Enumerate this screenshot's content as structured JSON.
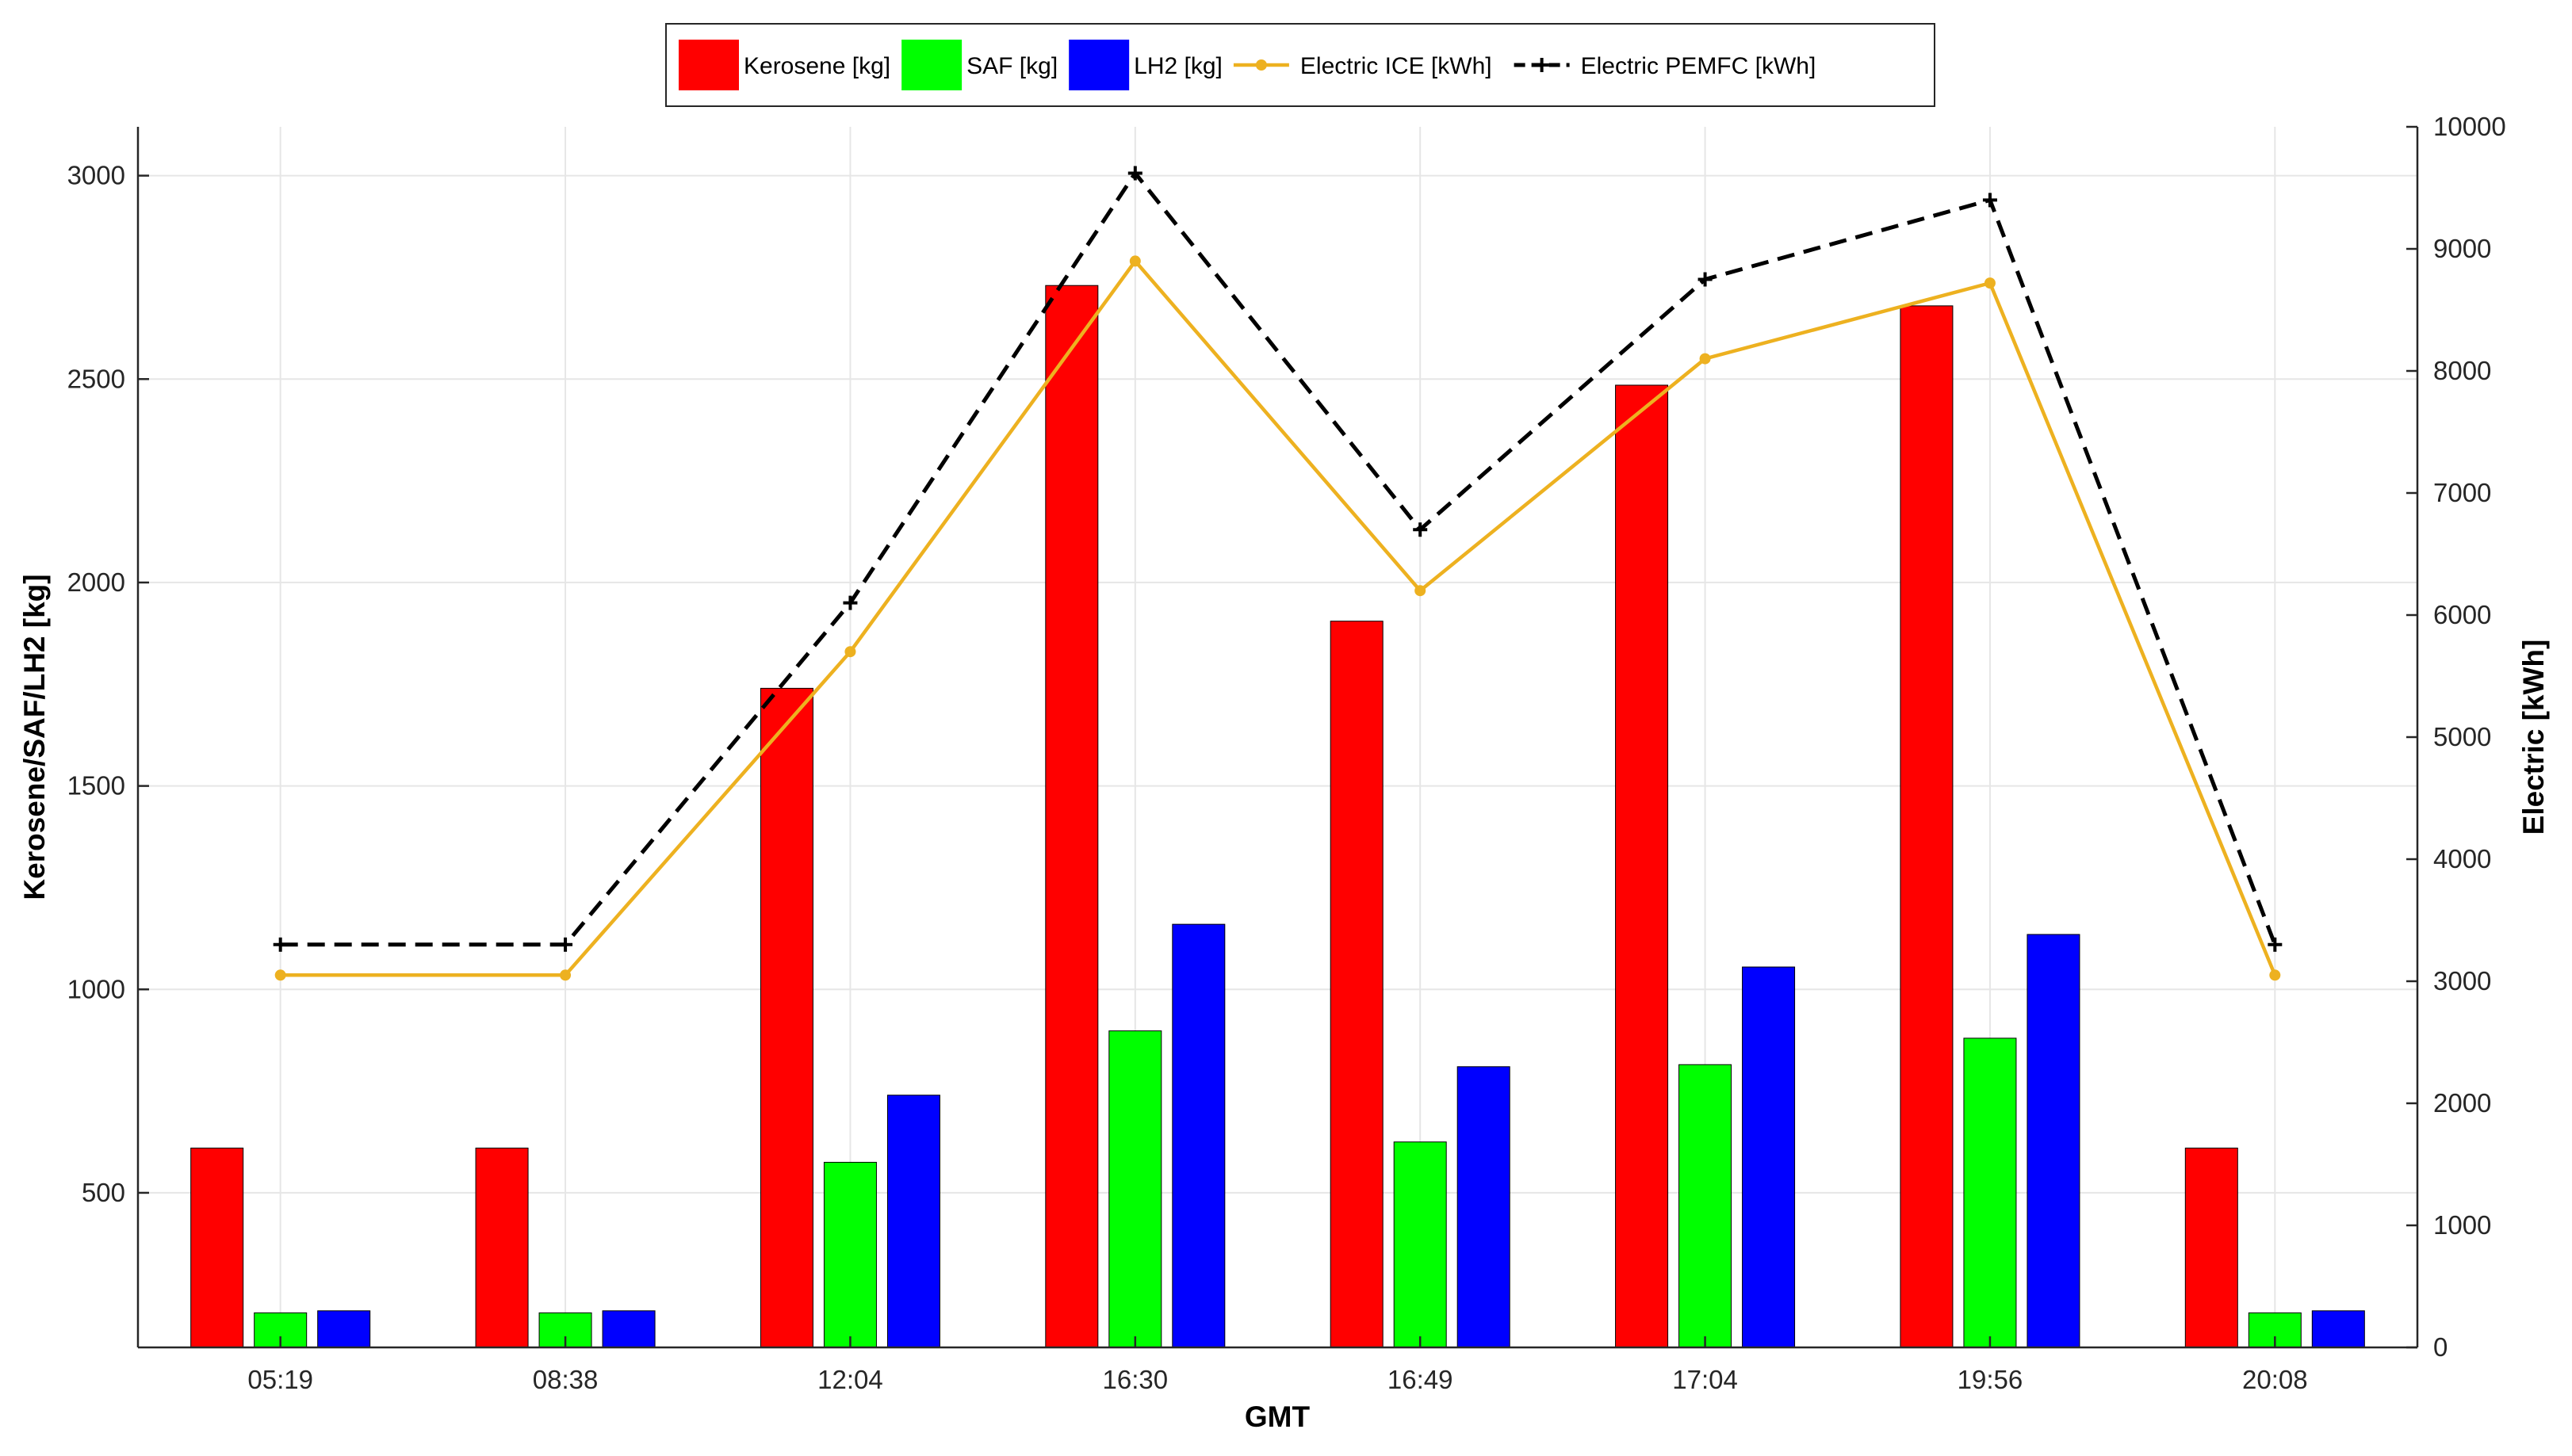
{
  "chart_data": {
    "type": "bar",
    "categories": [
      "05:19",
      "08:38",
      "12:04",
      "16:30",
      "16:49",
      "17:04",
      "19:56",
      "20:08"
    ],
    "xlabel": "GMT",
    "ylabel_left": "Kerosene/SAF/LH2 [kg]",
    "ylabel_right": "Electric [kWh]",
    "ylim_left": [
      120,
      3120
    ],
    "ylim_right": [
      0,
      10000
    ],
    "yticks_left": [
      500,
      1000,
      1500,
      2000,
      2500,
      3000
    ],
    "yticks_right": [
      0,
      1000,
      2000,
      3000,
      4000,
      5000,
      6000,
      7000,
      8000,
      9000,
      10000
    ],
    "grid": true,
    "legend_position": "top-center",
    "bar_series": [
      {
        "name": "Kerosene [kg]",
        "color": "#ff0000",
        "values": [
          610,
          610,
          1740,
          2730,
          1905,
          2485,
          2680,
          610
        ]
      },
      {
        "name": "SAF [kg]",
        "color": "#00ff00",
        "values": [
          205,
          205,
          575,
          898,
          625,
          815,
          880,
          205
        ]
      },
      {
        "name": "LH2 [kg]",
        "color": "#0000ff",
        "values": [
          210,
          210,
          740,
          1160,
          810,
          1055,
          1135,
          210
        ]
      }
    ],
    "line_series": [
      {
        "name": "Electric ICE [kWh]",
        "color": "#edb120",
        "style": "solid",
        "marker": "dot",
        "axis": "right",
        "values": [
          3050,
          3050,
          5700,
          8900,
          6200,
          8100,
          8720,
          3050
        ]
      },
      {
        "name": "Electric PEMFC [kWh]",
        "color": "#000000",
        "style": "dashed",
        "marker": "plus",
        "axis": "right",
        "values": [
          3300,
          3300,
          6100,
          9620,
          6700,
          8750,
          9400,
          3300
        ]
      }
    ]
  }
}
